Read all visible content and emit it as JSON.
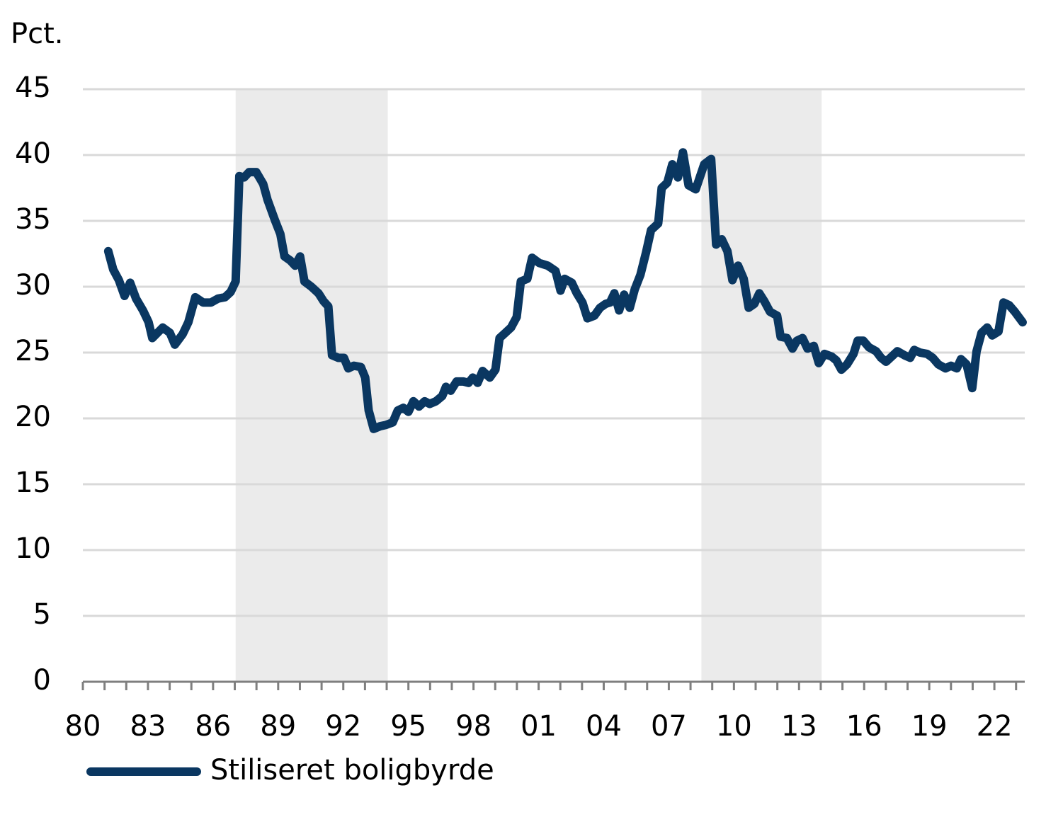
{
  "chart_data": {
    "type": "line",
    "y_axis_label": "Pct.",
    "xlim": [
      1980,
      2023.4
    ],
    "ylim": [
      0,
      45
    ],
    "yticks": [
      0,
      5,
      10,
      15,
      20,
      25,
      30,
      35,
      40,
      45
    ],
    "xticks": [
      {
        "value": 1980,
        "label": "80"
      },
      {
        "value": 1983,
        "label": "83"
      },
      {
        "value": 1986,
        "label": "86"
      },
      {
        "value": 1989,
        "label": "89"
      },
      {
        "value": 1992,
        "label": "92"
      },
      {
        "value": 1995,
        "label": "95"
      },
      {
        "value": 1998,
        "label": "98"
      },
      {
        "value": 2001,
        "label": "01"
      },
      {
        "value": 2004,
        "label": "04"
      },
      {
        "value": 2007,
        "label": "07"
      },
      {
        "value": 2010,
        "label": "10"
      },
      {
        "value": 2013,
        "label": "13"
      },
      {
        "value": 2016,
        "label": "16"
      },
      {
        "value": 2019,
        "label": "19"
      },
      {
        "value": 2022,
        "label": "22"
      }
    ],
    "xminor_ticks": [
      1980,
      1981,
      1982,
      1983,
      1984,
      1985,
      1986,
      1987,
      1988,
      1989,
      1990,
      1991,
      1992,
      1993,
      1994,
      1995,
      1996,
      1997,
      1998,
      1999,
      2000,
      2001,
      2002,
      2003,
      2004,
      2005,
      2006,
      2007,
      2008,
      2009,
      2010,
      2011,
      2012,
      2013,
      2014,
      2015,
      2016,
      2017,
      2018,
      2019,
      2020,
      2021,
      2022,
      2023
    ],
    "grid": true,
    "shaded_periods": [
      [
        1987.04,
        1994.05
      ],
      [
        2008.5,
        2014.04
      ]
    ],
    "shade_color": "#ebebeb",
    "legend": "bottom-left",
    "x": [
      1981.17,
      1981.4,
      1981.66,
      1981.92,
      1982.18,
      1982.45,
      1982.77,
      1983.03,
      1983.2,
      1983.68,
      1984.01,
      1984.24,
      1984.6,
      1984.86,
      1985.18,
      1985.54,
      1985.9,
      1986.23,
      1986.55,
      1986.81,
      1987.04,
      1987.21,
      1987.43,
      1987.66,
      1987.99,
      1988.31,
      1988.51,
      1988.84,
      1989.1,
      1989.29,
      1989.55,
      1989.78,
      1990.01,
      1990.21,
      1990.53,
      1990.86,
      1991.09,
      1991.31,
      1991.48,
      1991.77,
      1992.03,
      1992.23,
      1992.49,
      1992.81,
      1993.01,
      1993.17,
      1993.4,
      1993.69,
      1993.96,
      1994.28,
      1994.51,
      1994.77,
      1995.0,
      1995.23,
      1995.49,
      1995.75,
      1995.98,
      1996.27,
      1996.56,
      1996.73,
      1996.95,
      1997.22,
      1997.54,
      1997.77,
      1997.97,
      1998.19,
      1998.42,
      1998.75,
      1999.01,
      1999.2,
      1999.47,
      1999.73,
      1999.99,
      2000.18,
      2000.48,
      2000.7,
      2001.03,
      2001.42,
      2001.78,
      2002.01,
      2002.2,
      2002.53,
      2002.76,
      2003.02,
      2003.25,
      2003.57,
      2003.83,
      2004.09,
      2004.29,
      2004.49,
      2004.71,
      2004.94,
      2005.2,
      2005.43,
      2005.69,
      2005.95,
      2006.18,
      2006.51,
      2006.67,
      2006.93,
      2007.16,
      2007.42,
      2007.65,
      2007.91,
      2008.24,
      2008.63,
      2008.95,
      2009.18,
      2009.44,
      2009.7,
      2009.93,
      2010.19,
      2010.45,
      2010.68,
      2010.94,
      2011.17,
      2011.4,
      2011.66,
      2011.99,
      2012.15,
      2012.44,
      2012.7,
      2012.9,
      2013.16,
      2013.39,
      2013.68,
      2013.91,
      2014.17,
      2014.5,
      2014.72,
      2014.95,
      2015.21,
      2015.51,
      2015.7,
      2015.96,
      2016.22,
      2016.55,
      2016.78,
      2017.01,
      2017.27,
      2017.53,
      2017.85,
      2018.12,
      2018.31,
      2018.57,
      2018.9,
      2019.16,
      2019.42,
      2019.75,
      2020.0,
      2020.27,
      2020.46,
      2020.72,
      2020.98,
      2021.18,
      2021.41,
      2021.67,
      2021.9,
      2022.19,
      2022.42,
      2022.68,
      2022.94,
      2023.3
    ],
    "series": [
      {
        "name": "Stiliseret boligbyrde",
        "color": "#0a3761",
        "values": [
          32.7,
          31.3,
          30.5,
          29.3,
          30.3,
          29.1,
          28.2,
          27.3,
          26.1,
          26.9,
          26.5,
          25.6,
          26.4,
          27.3,
          29.2,
          28.8,
          28.8,
          29.1,
          29.2,
          29.6,
          30.4,
          38.4,
          38.3,
          38.7,
          38.7,
          37.8,
          36.6,
          35.1,
          34.0,
          32.3,
          32.0,
          31.6,
          32.3,
          30.4,
          30.0,
          29.5,
          28.9,
          28.5,
          24.8,
          24.6,
          24.6,
          23.8,
          24.0,
          23.9,
          23.1,
          20.6,
          19.2,
          19.4,
          19.5,
          19.7,
          20.6,
          20.8,
          20.5,
          21.3,
          20.9,
          21.3,
          21.1,
          21.3,
          21.7,
          22.4,
          22.1,
          22.8,
          22.8,
          22.7,
          23.1,
          22.7,
          23.6,
          23.1,
          23.7,
          26.1,
          26.5,
          26.9,
          27.7,
          30.4,
          30.6,
          32.2,
          31.8,
          31.6,
          31.2,
          29.7,
          30.6,
          30.3,
          29.5,
          28.8,
          27.6,
          27.8,
          28.4,
          28.7,
          28.8,
          29.5,
          28.2,
          29.4,
          28.4,
          29.8,
          30.9,
          32.6,
          34.3,
          34.8,
          37.5,
          37.9,
          39.3,
          38.3,
          40.2,
          37.7,
          37.4,
          39.3,
          39.7,
          33.2,
          33.6,
          32.7,
          30.5,
          31.6,
          30.6,
          28.4,
          28.7,
          29.5,
          28.9,
          28.1,
          27.8,
          26.2,
          26.1,
          25.3,
          25.9,
          26.1,
          25.3,
          25.5,
          24.2,
          24.9,
          24.7,
          24.4,
          23.7,
          24.1,
          24.9,
          25.9,
          25.9,
          25.4,
          25.1,
          24.6,
          24.3,
          24.7,
          25.1,
          24.8,
          24.6,
          25.2,
          25.0,
          24.9,
          24.6,
          24.1,
          23.8,
          24.0,
          23.8,
          24.5,
          24.1,
          22.3,
          25.1,
          26.5,
          26.9,
          26.3,
          26.6,
          28.8,
          28.6,
          28.1,
          27.3
        ]
      }
    ]
  }
}
